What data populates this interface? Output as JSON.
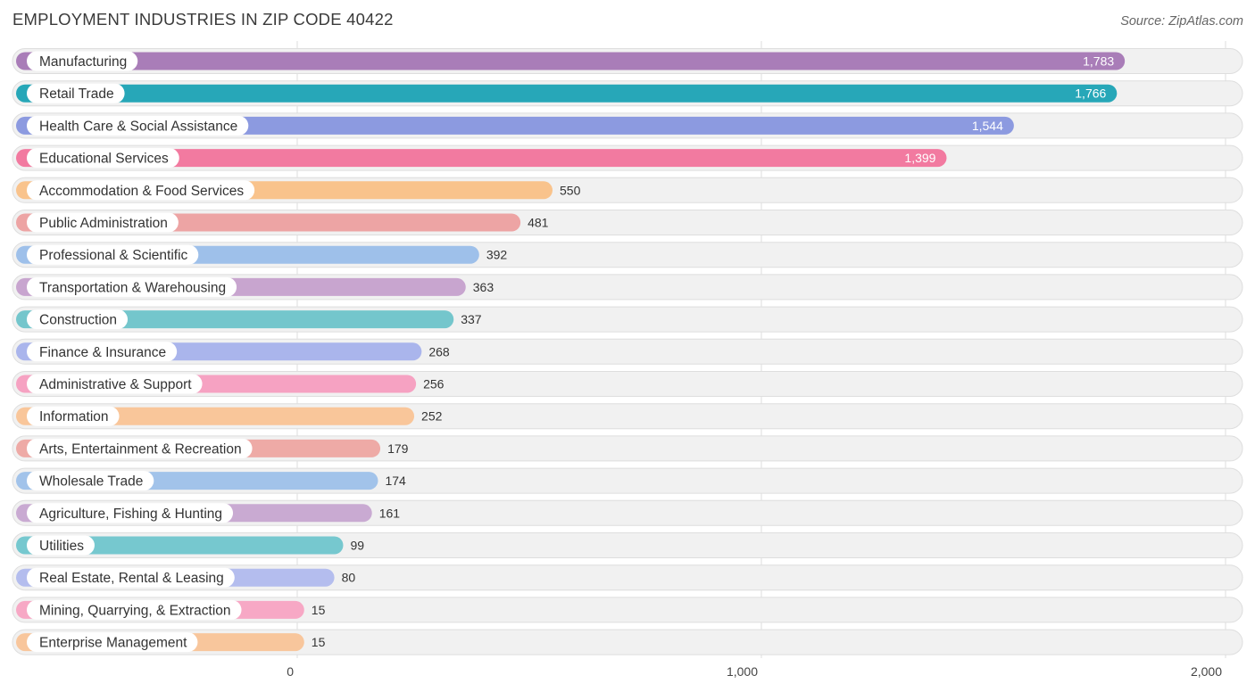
{
  "chart_data": {
    "type": "bar",
    "orientation": "horizontal",
    "title": "EMPLOYMENT INDUSTRIES IN ZIP CODE 40422",
    "source": "Source: ZipAtlas.com",
    "categories": [
      "Manufacturing",
      "Retail Trade",
      "Health Care & Social Assistance",
      "Educational Services",
      "Accommodation & Food Services",
      "Public Administration",
      "Professional & Scientific",
      "Transportation & Warehousing",
      "Construction",
      "Finance & Insurance",
      "Administrative & Support",
      "Information",
      "Arts, Entertainment & Recreation",
      "Wholesale Trade",
      "Agriculture, Fishing & Hunting",
      "Utilities",
      "Real Estate, Rental & Leasing",
      "Mining, Quarrying, & Extraction",
      "Enterprise Management"
    ],
    "values": [
      1783,
      1766,
      1544,
      1399,
      550,
      481,
      392,
      363,
      337,
      268,
      256,
      252,
      179,
      174,
      161,
      99,
      80,
      15,
      15
    ],
    "value_labels": [
      "1,783",
      "1,766",
      "1,544",
      "1,399",
      "550",
      "481",
      "392",
      "363",
      "337",
      "268",
      "256",
      "252",
      "179",
      "174",
      "161",
      "99",
      "80",
      "15",
      "15"
    ],
    "colors": [
      "#a97db8",
      "#27a7b8",
      "#8c9ae0",
      "#f27aa0",
      "#f9c38c",
      "#eda4a4",
      "#9ec0ea",
      "#c8a5cf",
      "#74c6cc",
      "#aab5ec",
      "#f6a2c2",
      "#f9c69a",
      "#eeaaa6",
      "#a2c3ea",
      "#c9aad2",
      "#76c8cf",
      "#b4bdee",
      "#f7a8c5",
      "#f8c69c"
    ],
    "x_ticks": [
      0,
      1000,
      2000
    ],
    "x_tick_labels": [
      "0",
      "1,000",
      "2,000"
    ],
    "xlim": [
      0,
      2000
    ],
    "grid": true
  }
}
